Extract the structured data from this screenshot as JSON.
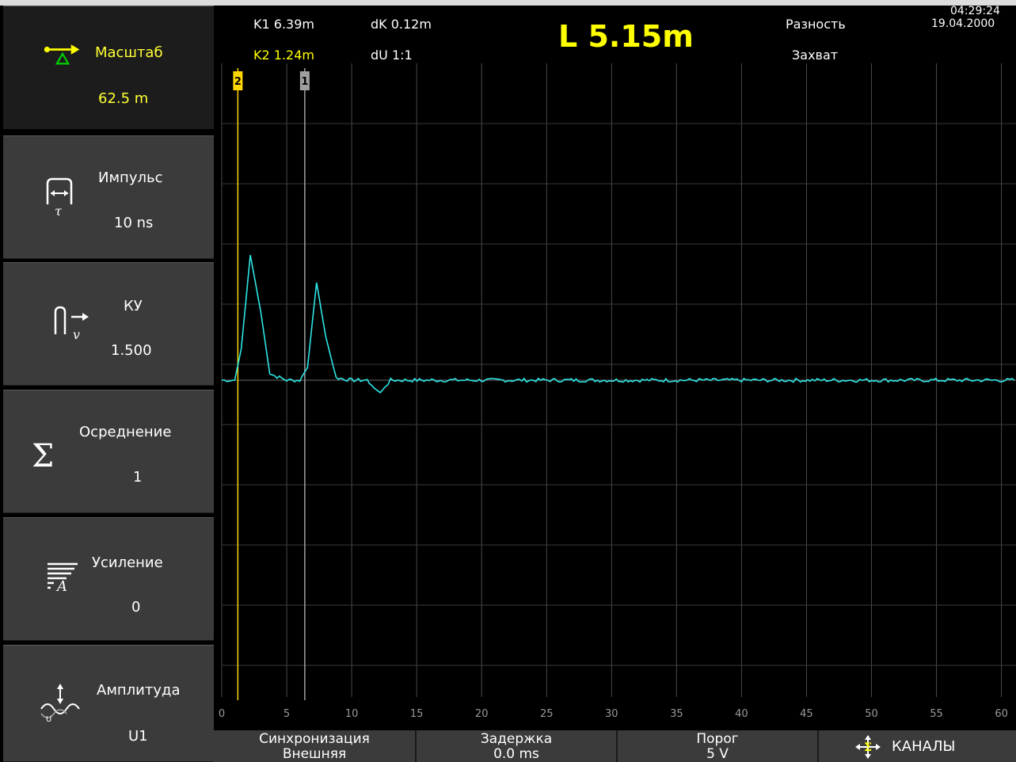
{
  "sidebar": {
    "items": [
      {
        "label": "Масштаб",
        "value": "62.5 m",
        "icon": "scale-arrow-icon",
        "active": true
      },
      {
        "label": "Импульс",
        "value": "10 ns",
        "icon": "pulse-width-icon"
      },
      {
        "label": "КУ",
        "value": "1.500",
        "icon": "velocity-factor-icon"
      },
      {
        "label": "Осреднение",
        "value": "1",
        "icon": "sigma-icon"
      },
      {
        "label": "Усиление",
        "value": "0",
        "icon": "gain-icon"
      },
      {
        "label": "Амплитуда",
        "value": "U1",
        "icon": "amplitude-icon"
      }
    ]
  },
  "header": {
    "k1": "K1 6.39m",
    "k2": "K2 1.24m",
    "dk": "dK 0.12m",
    "du": "dU 1:1",
    "length": "L 5.15m",
    "mode1": "Разность",
    "mode2": "Захват",
    "time": "04:29:24",
    "date": "19.04.2000"
  },
  "chart_data": {
    "type": "line",
    "xlim": [
      0,
      61
    ],
    "x_ticks": [
      "0",
      "5",
      "10",
      "15",
      "20",
      "25",
      "30",
      "35",
      "40",
      "45",
      "50",
      "55",
      "60"
    ],
    "grid": true,
    "cursors": [
      {
        "label": "2",
        "x": 1.24,
        "color": "#ffd700"
      },
      {
        "label": "1",
        "x": 6.39,
        "color": "#a0a0a0"
      }
    ],
    "series": [
      {
        "color": "#2ee6e6",
        "x": [
          0,
          1,
          1.5,
          2.2,
          3.0,
          3.7,
          5,
          6,
          6.6,
          7.3,
          8.0,
          8.8,
          10,
          11.2,
          11.7,
          12.2,
          13,
          20,
          30,
          40,
          50,
          61
        ],
        "y": [
          0,
          0,
          0.25,
          1.0,
          0.55,
          0.05,
          0,
          0,
          0.1,
          0.78,
          0.35,
          0.02,
          0,
          0,
          -0.06,
          -0.1,
          0,
          0,
          0,
          0,
          0,
          0
        ]
      }
    ]
  },
  "bottombar": {
    "sync_label": "Синхронизация",
    "sync_value": "Внешняя",
    "delay_label": "Задержка",
    "delay_value": "0.0 ms",
    "threshold_label": "Порог",
    "threshold_value": "5 V",
    "channels_label": "КАНАЛЫ"
  }
}
